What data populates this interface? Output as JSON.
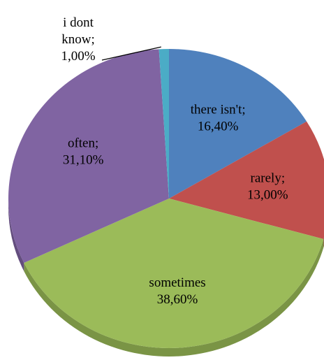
{
  "chart_data": {
    "type": "pie",
    "title": "",
    "slices": [
      {
        "label": "there isn't",
        "value": 16.4,
        "display": "16,40%",
        "color": "#4F81BD",
        "dark": "#3A6494"
      },
      {
        "label": "rarely",
        "value": 13.0,
        "display": "13,00%",
        "color": "#C0504D",
        "dark": "#943C3A"
      },
      {
        "label": "sometimes",
        "value": 38.6,
        "display": "38,60%",
        "color": "#9BBB59",
        "dark": "#7A9445"
      },
      {
        "label": "often",
        "value": 31.1,
        "display": "31,10%",
        "color": "#8064A2",
        "dark": "#634D7E"
      },
      {
        "label": "i dont know",
        "value": 1.0,
        "display": "1,00%",
        "color": "#4BACC6",
        "dark": "#37879C"
      }
    ],
    "legend": "none",
    "label_format": "category; percent"
  }
}
